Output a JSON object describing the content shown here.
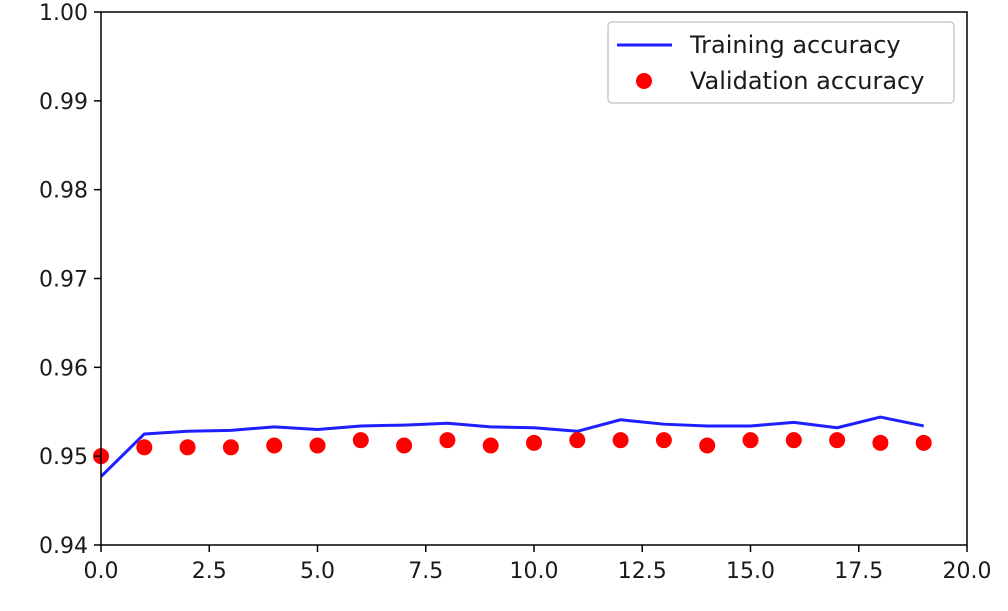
{
  "chart_data": {
    "type": "line",
    "title": "",
    "xlabel": "",
    "ylabel": "",
    "xlim": [
      0,
      20
    ],
    "ylim": [
      0.94,
      1.0
    ],
    "xticks": [
      "0.0",
      "2.5",
      "5.0",
      "7.5",
      "10.0",
      "12.5",
      "15.0",
      "17.5",
      "20.0"
    ],
    "yticks": [
      "0.94",
      "0.95",
      "0.96",
      "0.97",
      "0.98",
      "0.99",
      "1.00"
    ],
    "grid": false,
    "legend_position": "top-right",
    "series": [
      {
        "name": "Training accuracy",
        "style": "line",
        "color": "#1f1fff",
        "x": [
          0,
          1,
          2,
          3,
          4,
          5,
          6,
          7,
          8,
          9,
          10,
          11,
          12,
          13,
          14,
          15,
          16,
          17,
          18,
          19
        ],
        "y": [
          0.9477,
          0.9525,
          0.9528,
          0.9529,
          0.9533,
          0.953,
          0.9534,
          0.9535,
          0.9537,
          0.9533,
          0.9532,
          0.9528,
          0.9541,
          0.9536,
          0.9534,
          0.9534,
          0.9538,
          0.9532,
          0.9544,
          0.9534
        ]
      },
      {
        "name": "Validation accuracy",
        "style": "scatter",
        "color": "#ff0000",
        "x": [
          0,
          1,
          2,
          3,
          4,
          5,
          6,
          7,
          8,
          9,
          10,
          11,
          12,
          13,
          14,
          15,
          16,
          17,
          18,
          19
        ],
        "y": [
          0.95,
          0.951,
          0.951,
          0.951,
          0.9512,
          0.9512,
          0.9518,
          0.9512,
          0.9518,
          0.9512,
          0.9515,
          0.9518,
          0.9518,
          0.9518,
          0.9512,
          0.9518,
          0.9518,
          0.9518,
          0.9515,
          0.9515
        ]
      }
    ]
  }
}
